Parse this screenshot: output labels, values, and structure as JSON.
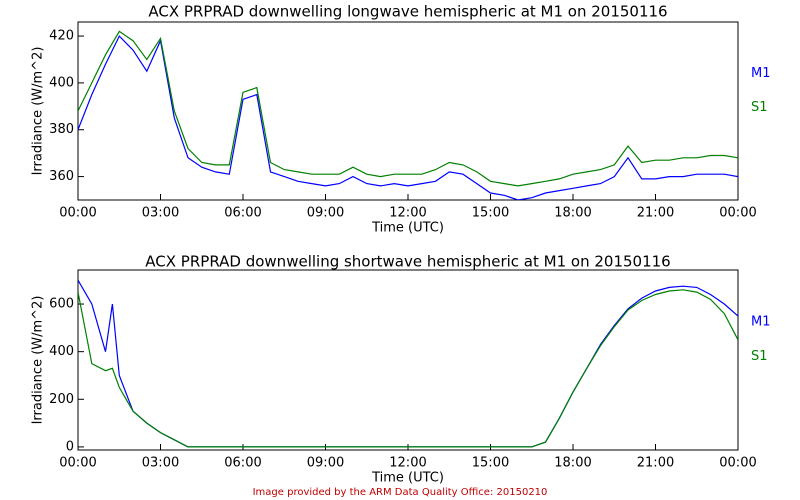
{
  "chart_data": [
    {
      "type": "line",
      "title": "ACX PRPRAD downwelling longwave hemispheric at M1 on 20150116",
      "x_label": "Time (UTC)",
      "y_label": "Irradiance (W/m^2)",
      "x": [
        0,
        0.5,
        1,
        1.5,
        2,
        2.5,
        3,
        3.5,
        4,
        4.5,
        5,
        5.5,
        6,
        6.5,
        7,
        7.5,
        8,
        8.5,
        9,
        9.5,
        10,
        10.5,
        11,
        11.5,
        12,
        12.5,
        13,
        13.5,
        14,
        14.5,
        15,
        15.5,
        16,
        16.5,
        17,
        17.5,
        18,
        18.5,
        19,
        19.5,
        20,
        20.5,
        21,
        21.5,
        22,
        22.5,
        23,
        23.5,
        24
      ],
      "series": [
        {
          "name": "M1",
          "color": "#0000ff",
          "values": [
            380,
            395,
            408,
            420,
            414,
            405,
            418,
            385,
            368,
            364,
            362,
            361,
            393,
            395,
            362,
            360,
            358,
            357,
            356,
            357,
            360,
            357,
            356,
            357,
            356,
            357,
            358,
            362,
            361,
            357,
            353,
            352,
            350,
            351,
            353,
            354,
            355,
            356,
            357,
            360,
            368,
            359,
            359,
            360,
            360,
            361,
            361,
            361,
            360
          ]
        },
        {
          "name": "S1",
          "color": "#008000",
          "values": [
            388,
            400,
            412,
            422,
            418,
            410,
            419,
            388,
            372,
            366,
            365,
            365,
            396,
            398,
            366,
            363,
            362,
            361,
            361,
            361,
            364,
            361,
            360,
            361,
            361,
            361,
            363,
            366,
            365,
            362,
            358,
            357,
            356,
            357,
            358,
            359,
            361,
            362,
            363,
            365,
            373,
            366,
            367,
            367,
            368,
            368,
            369,
            369,
            368
          ]
        }
      ],
      "xlim": [
        0,
        24
      ],
      "xticks": [
        {
          "value": 0,
          "label": "00:00"
        },
        {
          "value": 3,
          "label": "03:00"
        },
        {
          "value": 6,
          "label": "06:00"
        },
        {
          "value": 9,
          "label": "09:00"
        },
        {
          "value": 12,
          "label": "12:00"
        },
        {
          "value": 15,
          "label": "15:00"
        },
        {
          "value": 18,
          "label": "18:00"
        },
        {
          "value": 21,
          "label": "21:00"
        },
        {
          "value": 24,
          "label": "00:00"
        }
      ],
      "ylim": [
        350,
        426
      ],
      "yticks": [
        360,
        380,
        400,
        420
      ],
      "legend": "right"
    },
    {
      "type": "line",
      "title": "ACX PRPRAD downwelling shortwave hemispheric at M1 on 20150116",
      "x_label": "Time (UTC)",
      "y_label": "Irradiance (W/m^2)",
      "x": [
        0,
        0.5,
        1,
        1.25,
        1.5,
        2,
        2.5,
        3,
        3.5,
        4,
        5,
        6,
        7,
        8,
        9,
        10,
        11,
        12,
        13,
        14,
        15,
        16,
        16.5,
        17,
        17.5,
        18,
        18.5,
        19,
        19.5,
        20,
        20.5,
        21,
        21.5,
        22,
        22.5,
        23,
        23.5,
        24
      ],
      "series": [
        {
          "name": "M1",
          "color": "#0000ff",
          "values": [
            700,
            600,
            400,
            600,
            300,
            150,
            100,
            60,
            30,
            0,
            0,
            0,
            0,
            0,
            0,
            0,
            0,
            0,
            0,
            0,
            0,
            0,
            0,
            20,
            120,
            230,
            330,
            430,
            510,
            580,
            625,
            655,
            670,
            675,
            670,
            640,
            600,
            550
          ]
        },
        {
          "name": "S1",
          "color": "#008000",
          "values": [
            650,
            350,
            320,
            330,
            250,
            150,
            100,
            60,
            30,
            0,
            0,
            0,
            0,
            0,
            0,
            0,
            0,
            0,
            0,
            0,
            0,
            0,
            0,
            20,
            120,
            230,
            330,
            425,
            505,
            575,
            615,
            640,
            655,
            660,
            650,
            620,
            560,
            450
          ]
        }
      ],
      "xlim": [
        0,
        24
      ],
      "xticks": [
        {
          "value": 0,
          "label": "00:00"
        },
        {
          "value": 3,
          "label": "03:00"
        },
        {
          "value": 6,
          "label": "06:00"
        },
        {
          "value": 9,
          "label": "09:00"
        },
        {
          "value": 12,
          "label": "12:00"
        },
        {
          "value": 15,
          "label": "15:00"
        },
        {
          "value": 18,
          "label": "18:00"
        },
        {
          "value": 21,
          "label": "21:00"
        },
        {
          "value": 24,
          "label": "00:00"
        }
      ],
      "ylim": [
        -13,
        743
      ],
      "yticks": [
        0,
        200,
        400,
        600
      ],
      "legend": "right"
    }
  ],
  "footer": "Image provided by the ARM Data Quality Office: 20150210"
}
